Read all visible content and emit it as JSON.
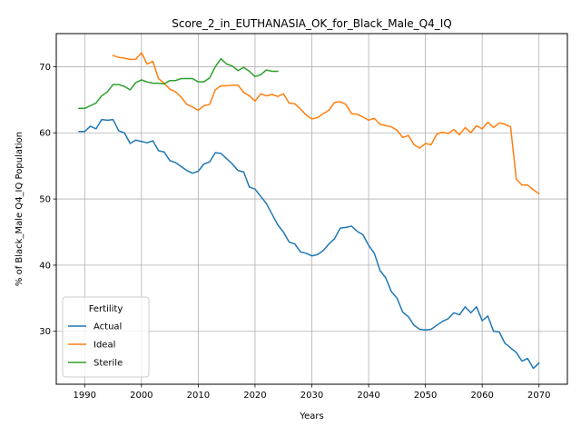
{
  "chart_data": {
    "type": "line",
    "title": "Score_2_in_EUTHANASIA_OK_for_Black_Male_Q4_IQ",
    "xlabel": "Years",
    "ylabel": "% of Black_Male Q4_IQ Population",
    "xlim": [
      1985,
      2075
    ],
    "ylim": [
      22,
      75
    ],
    "xticks": [
      1990,
      2000,
      2010,
      2020,
      2030,
      2040,
      2050,
      2060,
      2070
    ],
    "yticks": [
      30,
      40,
      50,
      60,
      70
    ],
    "grid": true,
    "legend": {
      "title": "Fertility",
      "placement": "lower-left"
    },
    "series": [
      {
        "name": "Actual",
        "color": "#1f77b4",
        "x": [
          1989,
          1990,
          1991,
          1992,
          1993,
          1994,
          1995,
          1996,
          1997,
          1998,
          1999,
          2000,
          2001,
          2002,
          2003,
          2004,
          2005,
          2006,
          2007,
          2008,
          2009,
          2010,
          2011,
          2012,
          2013,
          2014,
          2015,
          2016,
          2017,
          2018,
          2019,
          2020,
          2021,
          2022,
          2023,
          2024,
          2025,
          2026,
          2027,
          2028,
          2029,
          2030,
          2031,
          2032,
          2033,
          2034,
          2035,
          2036,
          2037,
          2038,
          2039,
          2040,
          2041,
          2042,
          2043,
          2044,
          2045,
          2046,
          2047,
          2048,
          2049,
          2050,
          2051,
          2052,
          2053,
          2054,
          2055,
          2056,
          2057,
          2058,
          2059,
          2060,
          2061,
          2062,
          2063,
          2064,
          2065,
          2066,
          2067,
          2068,
          2069,
          2070
        ],
        "values": [
          60.2,
          60.2,
          61.0,
          60.6,
          62.0,
          61.9,
          62.0,
          60.3,
          60.0,
          58.4,
          58.9,
          58.7,
          58.5,
          58.8,
          57.3,
          57.1,
          55.8,
          55.5,
          54.9,
          54.3,
          53.9,
          54.2,
          55.3,
          55.6,
          57.0,
          56.9,
          56.1,
          55.3,
          54.3,
          54.1,
          51.8,
          51.5,
          50.4,
          49.3,
          47.7,
          46.1,
          45.0,
          43.5,
          43.2,
          42.0,
          41.8,
          41.4,
          41.6,
          42.2,
          43.2,
          44.0,
          45.6,
          45.7,
          45.9,
          45.1,
          44.6,
          43.0,
          41.8,
          39.2,
          38.1,
          36.0,
          35.0,
          32.9,
          32.2,
          30.9,
          30.3,
          30.2,
          30.3,
          30.9,
          31.5,
          31.9,
          32.8,
          32.5,
          33.7,
          32.8,
          33.7,
          31.6,
          32.3,
          30.0,
          29.9,
          28.2,
          27.5,
          26.8,
          25.5,
          25.9,
          24.4,
          25.2
        ]
      },
      {
        "name": "Ideal",
        "color": "#ff7f0e",
        "x": [
          1995,
          1996,
          1997,
          1998,
          1999,
          2000,
          2001,
          2002,
          2003,
          2004,
          2005,
          2006,
          2007,
          2008,
          2009,
          2010,
          2011,
          2012,
          2013,
          2014,
          2015,
          2016,
          2017,
          2018,
          2019,
          2020,
          2021,
          2022,
          2023,
          2024,
          2025,
          2026,
          2027,
          2028,
          2029,
          2030,
          2031,
          2032,
          2033,
          2034,
          2035,
          2036,
          2037,
          2038,
          2039,
          2040,
          2041,
          2042,
          2043,
          2044,
          2045,
          2046,
          2047,
          2048,
          2049,
          2050,
          2051,
          2052,
          2053,
          2054,
          2055,
          2056,
          2057,
          2058,
          2059,
          2060,
          2061,
          2062,
          2063,
          2064,
          2065,
          2066,
          2067,
          2068,
          2069,
          2070
        ],
        "values": [
          71.7,
          71.4,
          71.3,
          71.1,
          71.1,
          72.1,
          70.4,
          70.8,
          68.2,
          67.5,
          66.6,
          66.2,
          65.4,
          64.3,
          63.9,
          63.4,
          64.1,
          64.3,
          66.5,
          67.1,
          67.1,
          67.2,
          67.2,
          66.1,
          65.6,
          64.8,
          65.9,
          65.6,
          65.8,
          65.5,
          65.9,
          64.5,
          64.4,
          63.6,
          62.7,
          62.1,
          62.3,
          62.9,
          63.4,
          64.6,
          64.7,
          64.3,
          62.9,
          62.8,
          62.4,
          61.9,
          62.2,
          61.3,
          61.1,
          60.9,
          60.4,
          59.3,
          59.6,
          58.2,
          57.7,
          58.4,
          58.2,
          59.8,
          60.1,
          59.9,
          60.5,
          59.7,
          60.8,
          60.0,
          61.1,
          60.6,
          61.6,
          60.8,
          61.5,
          61.3,
          60.9,
          53.0,
          52.1,
          52.1,
          51.4,
          50.8
        ]
      },
      {
        "name": "Sterile",
        "color": "#2ca02c",
        "x": [
          1989,
          1990,
          1991,
          1992,
          1993,
          1994,
          1995,
          1996,
          1997,
          1998,
          1999,
          2000,
          2001,
          2002,
          2003,
          2004,
          2005,
          2006,
          2007,
          2008,
          2009,
          2010,
          2011,
          2012,
          2013,
          2014,
          2015,
          2016,
          2017,
          2018,
          2019,
          2020,
          2021,
          2022,
          2023,
          2024
        ],
        "values": [
          63.7,
          63.7,
          64.1,
          64.5,
          65.6,
          66.2,
          67.3,
          67.3,
          67.0,
          66.5,
          67.6,
          68.0,
          67.7,
          67.5,
          67.5,
          67.4,
          67.9,
          67.9,
          68.2,
          68.2,
          68.2,
          67.7,
          67.7,
          68.3,
          70.0,
          71.2,
          70.4,
          70.1,
          69.4,
          69.9,
          69.3,
          68.5,
          68.8,
          69.5,
          69.3,
          69.3
        ]
      }
    ]
  }
}
